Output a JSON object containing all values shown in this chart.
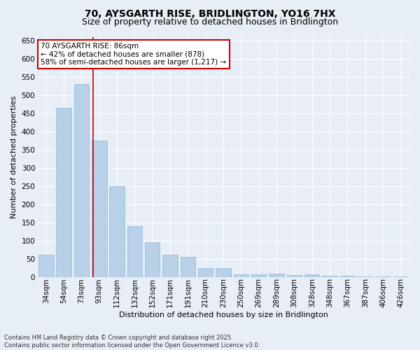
{
  "title1": "70, AYSGARTH RISE, BRIDLINGTON, YO16 7HX",
  "title2": "Size of property relative to detached houses in Bridlington",
  "xlabel": "Distribution of detached houses by size in Bridlington",
  "ylabel": "Number of detached properties",
  "categories": [
    "34sqm",
    "54sqm",
    "73sqm",
    "93sqm",
    "112sqm",
    "132sqm",
    "152sqm",
    "171sqm",
    "191sqm",
    "210sqm",
    "230sqm",
    "250sqm",
    "269sqm",
    "289sqm",
    "308sqm",
    "328sqm",
    "348sqm",
    "367sqm",
    "387sqm",
    "406sqm",
    "426sqm"
  ],
  "values": [
    62,
    465,
    530,
    375,
    250,
    140,
    95,
    62,
    55,
    25,
    25,
    8,
    8,
    10,
    5,
    8,
    3,
    3,
    2,
    1,
    1
  ],
  "bar_color": "#b8d0e8",
  "bar_edge_color": "#90b8d8",
  "vline_color": "#cc0000",
  "vline_pos": 2.65,
  "ylim": [
    0,
    660
  ],
  "yticks": [
    0,
    50,
    100,
    150,
    200,
    250,
    300,
    350,
    400,
    450,
    500,
    550,
    600,
    650
  ],
  "annotation_text": "70 AYSGARTH RISE: 86sqm\n← 42% of detached houses are smaller (878)\n58% of semi-detached houses are larger (1,217) →",
  "annotation_box_facecolor": "#ffffff",
  "annotation_box_edgecolor": "#cc0000",
  "bg_color": "#e8eef5",
  "grid_color": "#ffffff",
  "footer": "Contains HM Land Registry data © Crown copyright and database right 2025.\nContains public sector information licensed under the Open Government Licence v3.0.",
  "title_fontsize": 10,
  "subtitle_fontsize": 9,
  "axis_label_fontsize": 8,
  "tick_fontsize": 7.5,
  "annotation_fontsize": 7.5,
  "footer_fontsize": 6
}
